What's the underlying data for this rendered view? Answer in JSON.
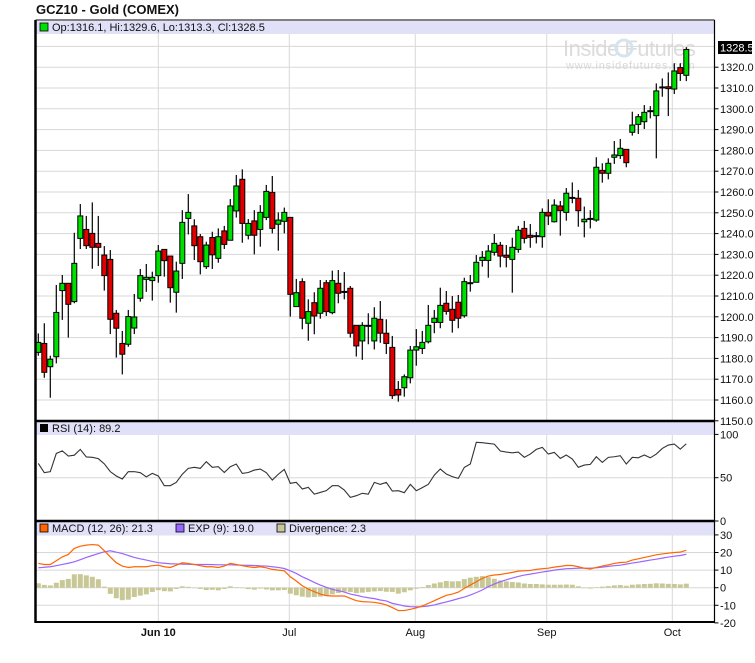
{
  "header": {
    "title": "GCZ10 - Gold (COMEX)"
  },
  "watermark": {
    "brand": "Inside Futures",
    "url": "www.insidefutures.com"
  },
  "colors": {
    "up": "#00e000",
    "down": "#e00000",
    "macd": "#ff6600",
    "exp": "#9966ff",
    "divergence": "#c8c896",
    "legend_bg": "#e0e0f8",
    "grid": "#d8d8d8"
  },
  "chart_data": [
    {
      "type": "candlestick",
      "panel": "price",
      "legend": "Op:1316.1, Hi:1329.6, Lo:1313.3, Cl:1328.5",
      "last_price_label": "1328.5",
      "ylim": [
        1150,
        1335
      ],
      "y_ticks": [
        "1150.0",
        "1160.0",
        "1170.0",
        "1180.0",
        "1190.0",
        "1200.0",
        "1210.0",
        "1220.0",
        "1230.0",
        "1240.0",
        "1250.0",
        "1260.0",
        "1270.0",
        "1280.0",
        "1290.0",
        "1300.0",
        "1310.0",
        "1320.0"
      ],
      "x_ticks": [
        "Jun 10",
        "Jul",
        "Aug",
        "Sep",
        "Oct"
      ],
      "grid": true,
      "ohlc": [
        [
          1182.9,
          1192,
          1181.3,
          1187.7
        ],
        [
          1187.2,
          1196.9,
          1170.7,
          1173.3
        ],
        [
          1176,
          1181.3,
          1161.1,
          1179.6
        ],
        [
          1180.8,
          1215.3,
          1177.6,
          1202.1
        ],
        [
          1212.6,
          1220.1,
          1198.5,
          1216.1
        ],
        [
          1216.1,
          1216.1,
          1190,
          1206
        ],
        [
          1207.3,
          1240.4,
          1206.5,
          1225.7
        ],
        [
          1237.7,
          1254.2,
          1232.6,
          1248.5
        ],
        [
          1242,
          1248.5,
          1232.6,
          1234.2
        ],
        [
          1240.1,
          1255,
          1223.1,
          1233.4
        ],
        [
          1235.3,
          1248.5,
          1224.4,
          1233.4
        ],
        [
          1229.7,
          1234,
          1212.6,
          1219.8
        ],
        [
          1227.6,
          1232.1,
          1191.7,
          1198.8
        ],
        [
          1201.7,
          1203.3,
          1180.4,
          1194.5
        ],
        [
          1187.2,
          1193.2,
          1172.3,
          1182
        ],
        [
          1186.8,
          1203.3,
          1185.6,
          1200.1
        ],
        [
          1194.6,
          1211,
          1191.7,
          1199.9
        ],
        [
          1208.9,
          1223,
          1207.3,
          1219.8
        ],
        [
          1218,
          1225.4,
          1212,
          1219
        ],
        [
          1217.4,
          1221.7,
          1207.8,
          1219
        ],
        [
          1219.8,
          1234.5,
          1216.4,
          1231.6
        ],
        [
          1232.4,
          1232.4,
          1219.3,
          1227
        ],
        [
          1229.2,
          1229.2,
          1206.8,
          1214
        ],
        [
          1211.8,
          1226.5,
          1202,
          1222
        ],
        [
          1225.7,
          1251.3,
          1218.2,
          1245.4
        ],
        [
          1247.3,
          1259,
          1239.6,
          1250.2
        ],
        [
          1243.7,
          1246.9,
          1227.3,
          1234.2
        ],
        [
          1238.5,
          1239.8,
          1220.4,
          1226.5
        ],
        [
          1224.1,
          1236.1,
          1223,
          1234.5
        ],
        [
          1238.1,
          1240.9,
          1223,
          1229.8
        ],
        [
          1228.1,
          1242.5,
          1226,
          1238.5
        ],
        [
          1241.3,
          1243.7,
          1232.6,
          1234.8
        ],
        [
          1236.8,
          1256.6,
          1236.8,
          1253.3
        ],
        [
          1250.9,
          1268.2,
          1247.7,
          1262.9
        ],
        [
          1266.1,
          1270.9,
          1235.6,
          1244.9
        ],
        [
          1239.2,
          1247,
          1237.2,
          1244.9
        ],
        [
          1246.1,
          1251.3,
          1230,
          1239.2
        ],
        [
          1242,
          1253.7,
          1233.7,
          1250.2
        ],
        [
          1247.8,
          1263.4,
          1246.5,
          1260.3
        ],
        [
          1259.8,
          1267.7,
          1240.1,
          1242.5
        ],
        [
          1244.5,
          1250.2,
          1231.8,
          1246.5
        ],
        [
          1245.9,
          1252.5,
          1240.1,
          1250.2
        ],
        [
          1247.8,
          1247.8,
          1200.1,
          1210.8
        ],
        [
          1204.9,
          1218.2,
          1204.9,
          1211.6
        ],
        [
          1216.9,
          1218.5,
          1194,
          1199.3
        ],
        [
          1196.9,
          1208.4,
          1188.5,
          1202.5
        ],
        [
          1206.8,
          1211.8,
          1191.6,
          1200.4
        ],
        [
          1201.7,
          1217.7,
          1199.1,
          1213.7
        ],
        [
          1216.4,
          1217.7,
          1200.4,
          1202.5
        ],
        [
          1202,
          1222.2,
          1201.2,
          1217.4
        ],
        [
          1216.1,
          1222.5,
          1206.5,
          1211.3
        ],
        [
          1212.2,
          1221.5,
          1208.4,
          1212.2
        ],
        [
          1213.7,
          1214.8,
          1190,
          1192.1
        ],
        [
          1195.9,
          1195.9,
          1180.9,
          1186
        ],
        [
          1188.4,
          1197.4,
          1179.3,
          1195.9
        ],
        [
          1195.9,
          1201.7,
          1186.8,
          1195.9
        ],
        [
          1188.4,
          1204.6,
          1184.3,
          1199.3
        ],
        [
          1198.8,
          1207.6,
          1187.5,
          1192.1
        ],
        [
          1192.1,
          1198.8,
          1182.1,
          1187.2
        ],
        [
          1185.3,
          1190.8,
          1160.5,
          1162.1
        ],
        [
          1165.1,
          1169.1,
          1159.2,
          1162.4
        ],
        [
          1165.9,
          1172.3,
          1161.6,
          1171.2
        ],
        [
          1170.7,
          1186,
          1168,
          1184
        ],
        [
          1184,
          1194.1,
          1176.5,
          1185.6
        ],
        [
          1184.8,
          1193.2,
          1182.1,
          1187.7
        ],
        [
          1188,
          1205.7,
          1187.2,
          1195.9
        ],
        [
          1197.3,
          1203.3,
          1192.1,
          1199.3
        ],
        [
          1197.3,
          1214,
          1194.5,
          1205.5
        ],
        [
          1206.5,
          1212.4,
          1201,
          1202.6
        ],
        [
          1203.6,
          1210,
          1192.4,
          1198.3
        ],
        [
          1207,
          1210.5,
          1194.5,
          1199.3
        ],
        [
          1200.5,
          1218.8,
          1199.6,
          1216.9
        ],
        [
          1216.4,
          1220.1,
          1212.1,
          1216.4
        ],
        [
          1216.6,
          1229.7,
          1216.6,
          1226.2
        ],
        [
          1227.1,
          1231.6,
          1224.1,
          1228.6
        ],
        [
          1227.1,
          1234.5,
          1218.8,
          1231.6
        ],
        [
          1231,
          1239.8,
          1229.4,
          1235.3
        ],
        [
          1234.4,
          1236,
          1223.8,
          1229.2
        ],
        [
          1229.6,
          1234.5,
          1223.8,
          1228.6
        ],
        [
          1227.6,
          1238,
          1211.6,
          1233.4
        ],
        [
          1232.4,
          1243.7,
          1230.8,
          1241.6
        ],
        [
          1242.5,
          1246.1,
          1235.3,
          1237.7
        ],
        [
          1239.2,
          1244.6,
          1233.2,
          1238.2
        ],
        [
          1239,
          1240.8,
          1235.3,
          1239
        ],
        [
          1238.5,
          1252.1,
          1233.2,
          1250.2
        ],
        [
          1250.2,
          1256.5,
          1244.1,
          1248.5
        ],
        [
          1245.7,
          1256.5,
          1245.3,
          1253.7
        ],
        [
          1253.3,
          1255.7,
          1239,
          1251
        ],
        [
          1250.2,
          1261.9,
          1246.2,
          1259.4
        ],
        [
          1257.4,
          1264.6,
          1254.6,
          1257.4
        ],
        [
          1257,
          1261,
          1243.3,
          1251
        ],
        [
          1245.7,
          1253,
          1238.2,
          1246.9
        ],
        [
          1247.3,
          1251.3,
          1242.5,
          1247.3
        ],
        [
          1246.5,
          1276.7,
          1245.7,
          1271.9
        ],
        [
          1270.4,
          1273.8,
          1264.5,
          1269
        ],
        [
          1269,
          1276.2,
          1266.1,
          1273.8
        ],
        [
          1276.7,
          1284.5,
          1273.5,
          1277.8
        ],
        [
          1277.5,
          1285.5,
          1275.9,
          1281
        ],
        [
          1280.5,
          1280.5,
          1271.9,
          1274.1
        ],
        [
          1288.7,
          1298.6,
          1287.1,
          1292.2
        ],
        [
          1292.5,
          1297.5,
          1287.9,
          1296.2
        ],
        [
          1293.8,
          1301.8,
          1290.3,
          1298.3
        ],
        [
          1299.1,
          1301.3,
          1295.4,
          1299.1
        ],
        [
          1296.7,
          1312.2,
          1276.2,
          1308.6
        ],
        [
          1310.5,
          1314.6,
          1305.8,
          1310.5
        ],
        [
          1310.6,
          1317.5,
          1296.5,
          1309.7
        ],
        [
          1309.5,
          1321.9,
          1307.1,
          1318.2
        ],
        [
          1319.8,
          1321.9,
          1313.4,
          1317
        ],
        [
          1316.1,
          1329.6,
          1313.3,
          1328.5
        ]
      ]
    },
    {
      "type": "line",
      "panel": "rsi",
      "legend": "RSI (14): 89.2",
      "ylim": [
        0,
        100
      ],
      "y_ticks": [
        "100",
        "50",
        "0"
      ],
      "values": [
        66.5,
        55.8,
        57,
        78,
        81,
        75,
        76,
        82.7,
        74,
        73.5,
        72,
        66,
        57,
        52,
        48.5,
        57,
        57,
        55.8,
        51,
        55,
        52,
        40.8,
        40.8,
        44.6,
        54,
        60.8,
        62,
        60.8,
        68.5,
        62,
        62.7,
        56,
        62.7,
        65.8,
        55,
        56,
        58.8,
        60,
        55.8,
        47.3,
        54,
        59.6,
        43.5,
        44.6,
        37,
        38.8,
        31,
        33,
        35,
        40.8,
        40.8,
        35.8,
        27.3,
        29.2,
        32,
        31,
        44.6,
        42.3,
        44.6,
        34.6,
        35,
        32.7,
        42.3,
        35,
        38.5,
        42.3,
        53,
        60,
        54.2,
        51.2,
        49.2,
        61.9,
        65.8,
        90.8,
        90.4,
        89.6,
        88.8,
        80.8,
        79.6,
        78.8,
        79.6,
        73.5,
        77.3,
        82.7,
        85,
        77.3,
        79.2,
        72.3,
        76.2,
        71.5,
        62,
        64.6,
        65.4,
        74.2,
        67.7,
        73.5,
        74.2,
        75.4,
        65.8,
        73.5,
        73,
        76.2,
        73,
        77.3,
        83.8,
        87.7,
        88.8,
        83,
        89.2
      ]
    },
    {
      "type": "line+bar",
      "panel": "macd",
      "ylim": [
        -20,
        30
      ],
      "y_ticks": [
        "30",
        "20",
        "10",
        "0",
        "-10",
        "-20"
      ],
      "series": [
        {
          "name": "MACD (12, 26): 21.3",
          "kind": "line",
          "values": [
            13.8,
            13.2,
            13.2,
            15.3,
            17.5,
            18.9,
            22.3,
            23.6,
            24.2,
            24.5,
            24.2,
            21,
            17.5,
            14.2,
            12.3,
            11.5,
            11.9,
            11.9,
            11.9,
            12.5,
            12.8,
            11.9,
            11.5,
            12.8,
            14.2,
            13.8,
            13.2,
            12.5,
            11.9,
            11.9,
            11.5,
            12.3,
            13.8,
            13.2,
            12.5,
            11.9,
            11.5,
            11.9,
            11.3,
            10.4,
            10,
            9.6,
            6.2,
            3.8,
            1.1,
            -0.8,
            -2.3,
            -3.6,
            -4.5,
            -4.7,
            -4.7,
            -4.7,
            -6,
            -7.4,
            -7.9,
            -8.1,
            -8.3,
            -8.9,
            -9.8,
            -11.3,
            -13,
            -13,
            -12.3,
            -11.5,
            -10.4,
            -8.9,
            -7.4,
            -5.8,
            -4.3,
            -3.6,
            -2.5,
            -0.4,
            1.5,
            3.4,
            5.3,
            6.6,
            7.2,
            7.5,
            8.1,
            8.7,
            9.4,
            9.6,
            9.8,
            10.4,
            10.8,
            11.1,
            11.7,
            12.1,
            12.6,
            12.6,
            11.9,
            11.1,
            10.6,
            11.5,
            12.3,
            13,
            13.8,
            14.3,
            14.5,
            15.7,
            16.4,
            17.2,
            17.9,
            18.7,
            19.2,
            19.6,
            20,
            20.2,
            21.3
          ]
        },
        {
          "name": "EXP (9): 19.0",
          "kind": "line",
          "values": [
            11.3,
            11.6,
            11.9,
            12.5,
            13.2,
            13.9,
            14.7,
            15.9,
            17.2,
            18.3,
            19.4,
            20.4,
            21,
            20.2,
            19.4,
            18.3,
            17.2,
            16.4,
            15.7,
            14.9,
            14.2,
            13.9,
            13.6,
            13.5,
            13.4,
            13.3,
            13.2,
            13.2,
            13.2,
            13.1,
            13,
            13,
            13,
            12.9,
            12.8,
            12.7,
            12.6,
            12.4,
            12.3,
            11.9,
            11.5,
            10.9,
            9.6,
            8.1,
            6.2,
            4.7,
            3,
            1.5,
            0.2,
            -0.9,
            -1.7,
            -2.5,
            -3.6,
            -4.3,
            -5.1,
            -5.7,
            -6.2,
            -7,
            -7.5,
            -8.9,
            -9.6,
            -10.4,
            -10.8,
            -10.9,
            -10.8,
            -10.4,
            -9.8,
            -8.9,
            -8.1,
            -7.2,
            -6.2,
            -5.3,
            -4.2,
            -2.8,
            -1.3,
            0.6,
            2.1,
            3.4,
            4.5,
            5.5,
            6.4,
            7.2,
            7.7,
            8.3,
            8.9,
            9.4,
            10,
            10.4,
            10.8,
            10.9,
            11.1,
            11.1,
            11.1,
            11.3,
            11.7,
            12.1,
            12.5,
            12.8,
            13.4,
            14,
            14.5,
            15.1,
            15.7,
            16.2,
            16.8,
            17.4,
            17.9,
            18.3,
            19.0
          ]
        },
        {
          "name": "Divergence: 2.3",
          "kind": "bar",
          "values": [
            2.5,
            1.6,
            1.3,
            2.8,
            4.3,
            5.0,
            7.6,
            7.7,
            7.0,
            6.2,
            4.8,
            0.6,
            -3.5,
            -6.0,
            -7.1,
            -6.8,
            -5.3,
            -4.5,
            -3.8,
            -2.4,
            -1.4,
            -2.0,
            -2.1,
            -0.7,
            0.8,
            0.5,
            0,
            -0.7,
            -1.3,
            -1.2,
            -1.5,
            -0.7,
            0.8,
            0.3,
            -0.3,
            -0.8,
            -1.1,
            -0.5,
            -1.0,
            -1.5,
            -1.5,
            -1.3,
            -3.4,
            -4.3,
            -5.1,
            -5.5,
            -5.3,
            -5.1,
            -4.7,
            -3.8,
            -3.0,
            -2.2,
            -2.4,
            -3.1,
            -2.8,
            -2.4,
            -2.1,
            -1.9,
            -2.3,
            -2.4,
            -3.4,
            -2.6,
            -1.5,
            -0.6,
            0.4,
            1.5,
            2.4,
            3.1,
            3.8,
            3.6,
            3.7,
            4.9,
            5.7,
            6.2,
            6.6,
            6.0,
            5.1,
            4.1,
            3.6,
            3.2,
            3.0,
            2.4,
            2.1,
            2.1,
            1.9,
            1.7,
            1.7,
            1.7,
            1.8,
            1.7,
            0.8,
            0,
            -0.5,
            0.2,
            0.6,
            0.9,
            1.3,
            1.5,
            1.1,
            1.7,
            1.9,
            2.1,
            2.2,
            2.5,
            2.4,
            2.2,
            2.1,
            1.9,
            2.3
          ]
        }
      ]
    }
  ]
}
